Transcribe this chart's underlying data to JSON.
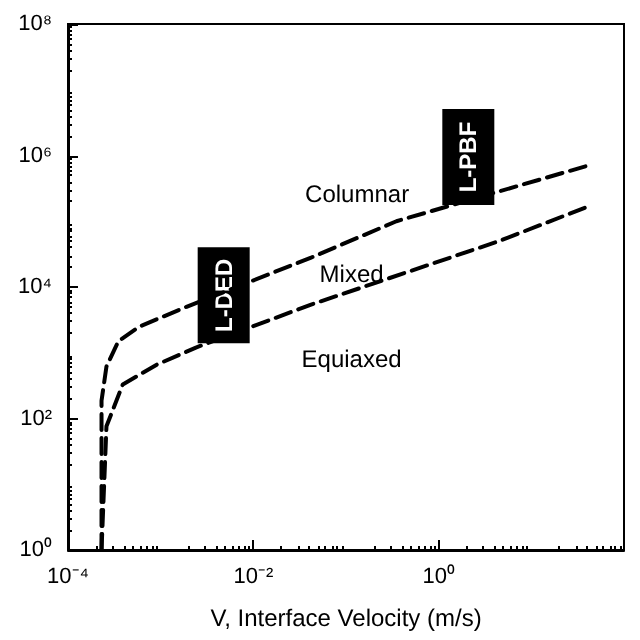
{
  "chart_data": {
    "type": "line",
    "xlabel": "V, Interface Velocity (m/s)",
    "log": "xy",
    "grid": false,
    "marker": "none",
    "line_style": "dashed",
    "xlim": [
      0.0001,
      100
    ],
    "ylim": [
      1,
      100000000
    ],
    "xticks": [
      {
        "value": 0.0001,
        "label": "10⁻⁴"
      },
      {
        "value": 0.01,
        "label": "10⁻²"
      },
      {
        "value": 1,
        "label": "10⁰"
      }
    ],
    "yticks": [
      {
        "value": 1,
        "label": "10⁰"
      },
      {
        "value": 100,
        "label": "10²"
      },
      {
        "value": 10000,
        "label": "10⁴"
      },
      {
        "value": 1000000,
        "label": "10⁶"
      },
      {
        "value": 100000000,
        "label": "10⁸"
      }
    ],
    "series": [
      {
        "color": "#000000",
        "x": [
          0.00023,
          0.00023,
          0.00026,
          0.00035,
          0.00059,
          0.0019,
          0.042,
          0.35,
          42
        ],
        "values": [
          1,
          186,
          617,
          1500,
          2500,
          5000,
          28000,
          100000,
          710000
        ]
      },
      {
        "color": "#000000",
        "x": [
          0.00023,
          0.00026,
          0.00039,
          0.00091,
          0.0024,
          0.042,
          4.5,
          42
        ],
        "values": [
          1,
          76,
          330,
          660,
          1200,
          5400,
          50000,
          170000
        ]
      }
    ],
    "annotations": [
      "Columnar",
      "Mixed",
      "Equiaxed",
      "L-DED",
      "L-PBF"
    ]
  }
}
